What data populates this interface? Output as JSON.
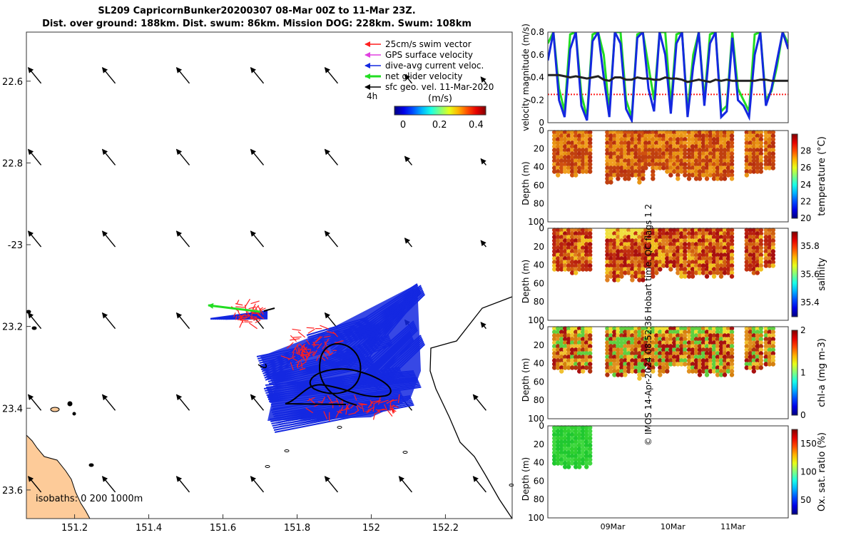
{
  "title": {
    "line1": "SL209 CapricornBunker20200307 08-Mar 00Z to 11-Mar 23Z.",
    "line2": "Dist. over ground: 188km. Dist. swum: 86km. Mission DOG: 228km. Swum: 108km"
  },
  "credit": "© IMOS 14-Apr-2024 08:52:36 Hobart time. QC flags 1  2",
  "colors": {
    "swim": "#ff1f1f",
    "gps": "#e040e0",
    "current": "#1428e0",
    "net": "#22dd22",
    "geo": "#000000",
    "land": "#fdcb99"
  },
  "chart_data": [
    {
      "type": "scatter",
      "name": "map",
      "x": [
        151.2,
        151.4,
        151.6,
        151.8,
        152,
        152.2
      ],
      "xlabels": [
        "151.2",
        "151.4",
        "151.6",
        "151.8",
        "152",
        "152.2"
      ],
      "ylim": [
        -23.67,
        -22.48
      ],
      "xlim": [
        151.07,
        152.38
      ],
      "yticks": [
        -22.6,
        -22.8,
        -23,
        -23.2,
        -23.4,
        -23.6
      ],
      "ylabels": [
        "22.6",
        "22.8",
        "-23",
        "23.2",
        "23.4",
        "23.6"
      ],
      "legend": [
        "25cm/s swim vector",
        "GPS surface velocity",
        "dive-avg current veloc.",
        "net glider velocity",
        "sfc geo. vel. 11-Mar-2020"
      ],
      "legend_note": "4h",
      "colorbar": {
        "label": "(m/s)",
        "ticks": [
          "0",
          "0.2",
          "0.4"
        ],
        "range": [
          0,
          0.5
        ]
      },
      "isobaths": "isobaths: 0   200  1000m",
      "geo_vectors": {
        "direction": "north-west",
        "grid_lon": [
          151.1,
          151.3,
          151.5,
          151.7,
          151.9,
          152.1,
          152.3
        ],
        "grid_lat": [
          -22.6,
          -22.8,
          -23,
          -23.2,
          -23.4,
          -23.6
        ]
      }
    },
    {
      "type": "line",
      "name": "velocity",
      "ylabel": "velocity magnitude (m/s)",
      "ylim": [
        0,
        0.8
      ],
      "yticks": [
        "0",
        "0.2",
        "0.4",
        "0.6",
        "0.8"
      ],
      "series": [
        {
          "name": "net glider velocity",
          "values": [
            0.7,
            0.8,
            0.3,
            0.1,
            0.78,
            0.8,
            0.25,
            0.05,
            0.78,
            0.8,
            0.6,
            0.1,
            0.8,
            0.8,
            0.2,
            0.05,
            0.78,
            0.8,
            0.5,
            0.2,
            0.8,
            0.8,
            0.15,
            0.78,
            0.8,
            0.1,
            0.6,
            0.8,
            0.2,
            0.78,
            0.8,
            0.1,
            0.15,
            0.8,
            0.3,
            0.2,
            0.1,
            0.78,
            0.8,
            0.2,
            0.28,
            0.5,
            0.8,
            0.7
          ]
        },
        {
          "name": "dive-avg current veloc.",
          "values": [
            0.55,
            0.8,
            0.2,
            0.05,
            0.65,
            0.8,
            0.15,
            0.02,
            0.72,
            0.8,
            0.4,
            0.05,
            0.8,
            0.7,
            0.12,
            0.02,
            0.75,
            0.8,
            0.3,
            0.1,
            0.8,
            0.6,
            0.08,
            0.7,
            0.8,
            0.05,
            0.5,
            0.8,
            0.15,
            0.7,
            0.8,
            0.05,
            0.1,
            0.75,
            0.2,
            0.15,
            0.05,
            0.6,
            0.8,
            0.15,
            0.3,
            0.55,
            0.8,
            0.65
          ]
        },
        {
          "name": "sfc geo. vel.",
          "values": [
            0.42,
            0.42,
            0.42,
            0.41,
            0.4,
            0.41,
            0.4,
            0.39,
            0.4,
            0.41,
            0.38,
            0.37,
            0.4,
            0.4,
            0.38,
            0.38,
            0.4,
            0.39,
            0.39,
            0.38,
            0.38,
            0.4,
            0.39,
            0.39,
            0.38,
            0.36,
            0.37,
            0.38,
            0.37,
            0.36,
            0.38,
            0.37,
            0.38,
            0.37,
            0.37,
            0.37,
            0.37,
            0.37,
            0.38,
            0.38,
            0.37,
            0.37,
            0.37,
            0.37
          ]
        }
      ],
      "swim_level": 0.25
    },
    {
      "type": "heatmap",
      "name": "temperature",
      "ylabel": "Depth (m)",
      "yticks": [
        "0",
        "20",
        "40",
        "60",
        "80",
        "100"
      ],
      "cblabel": "temperature (°C)",
      "cbticks": [
        "20",
        "22",
        "24",
        "26",
        "28"
      ],
      "cbrange": [
        20,
        30
      ]
    },
    {
      "type": "heatmap",
      "name": "salinity",
      "ylabel": "Depth (m)",
      "yticks": [
        "0",
        "20",
        "40",
        "60",
        "80",
        "100"
      ],
      "cblabel": "salinity",
      "cbticks": [
        "35.4",
        "35.6",
        "35.8"
      ],
      "cbrange": [
        35.3,
        35.9
      ]
    },
    {
      "type": "heatmap",
      "name": "chl-a",
      "ylabel": "Depth (m)",
      "yticks": [
        "0",
        "20",
        "40",
        "60",
        "80",
        "100"
      ],
      "cblabel": "chl-a (mg m-3)",
      "cbticks": [
        "0",
        "1",
        "2"
      ],
      "cbrange": [
        0,
        2
      ]
    },
    {
      "type": "heatmap",
      "name": "oxygen",
      "ylabel": "Depth (m)",
      "yticks": [
        "0",
        "20",
        "40",
        "60",
        "80",
        "100"
      ],
      "cblabel": "Ox. sat. ratio (%)",
      "cbticks": [
        "50",
        "100",
        "150"
      ],
      "cbrange": [
        25,
        175
      ],
      "xticks": [
        "09Mar",
        "10Mar",
        "11Mar"
      ]
    }
  ]
}
